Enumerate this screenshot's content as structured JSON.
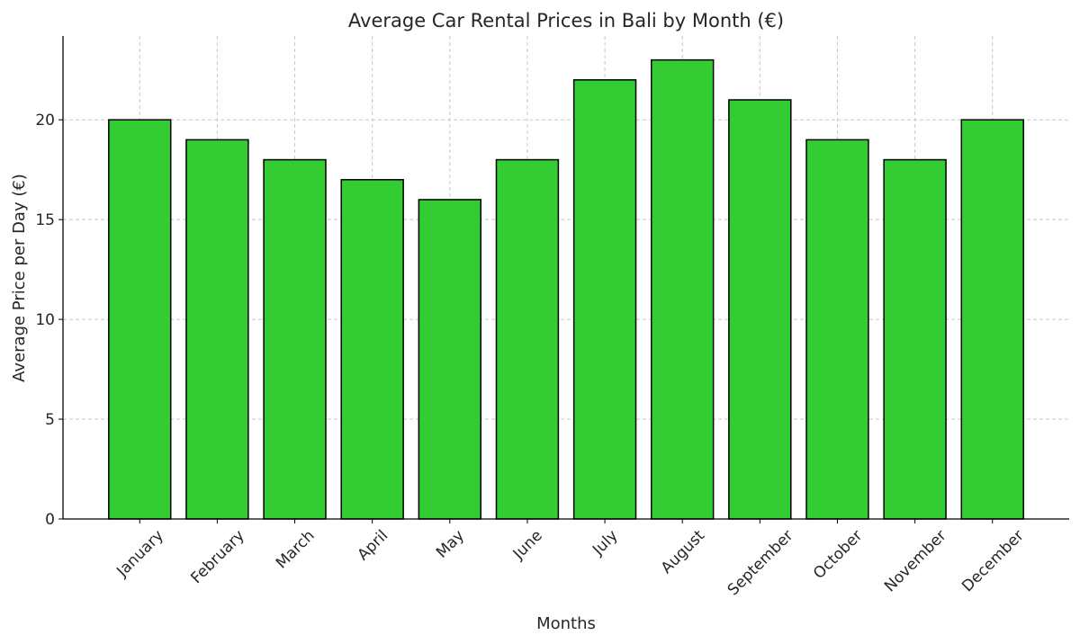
{
  "chart_data": {
    "type": "bar",
    "title": "Average Car Rental Prices in Bali by Month (€)",
    "xlabel": "Months",
    "ylabel": "Average Price per Day (€)",
    "categories": [
      "January",
      "February",
      "March",
      "April",
      "May",
      "June",
      "July",
      "August",
      "September",
      "October",
      "November",
      "December"
    ],
    "values": [
      20,
      19,
      18,
      17,
      16,
      18,
      22,
      23,
      21,
      19,
      18,
      20
    ],
    "ylim": [
      0,
      24.2
    ],
    "yticks": [
      0,
      5,
      10,
      15,
      20
    ],
    "grid": true,
    "bar_color": "#33cc33",
    "edge_color": "#000000",
    "xtick_rotation": 45
  }
}
